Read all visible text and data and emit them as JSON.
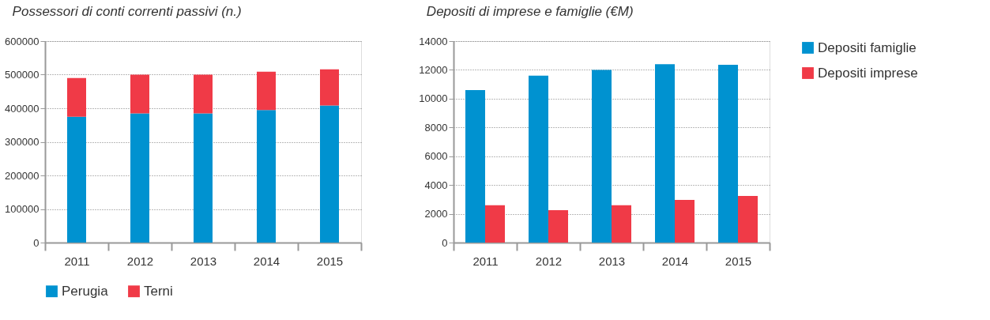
{
  "chart_data": [
    {
      "type": "bar",
      "title": "Possessori di conti correnti passivi (n.)",
      "stacked": true,
      "categories": [
        "2011",
        "2012",
        "2013",
        "2014",
        "2015"
      ],
      "series": [
        {
          "name": "Perugia",
          "color": "#0092d0",
          "values": [
            375000,
            385000,
            385000,
            395000,
            408000
          ]
        },
        {
          "name": "Terni",
          "color": "#f03a47",
          "values": [
            115000,
            115000,
            115000,
            114000,
            108000
          ]
        }
      ],
      "ylim": [
        0,
        600000
      ],
      "yticks": [
        0,
        100000,
        200000,
        300000,
        400000,
        500000,
        600000
      ],
      "grid": "y",
      "legend": "bottom"
    },
    {
      "type": "bar",
      "title": "Depositi di imprese e famiglie (€M)",
      "categories": [
        "2011",
        "2012",
        "2013",
        "2014",
        "2015"
      ],
      "series": [
        {
          "name": "Depositi famiglie",
          "color": "#0092d0",
          "values": [
            10600,
            11600,
            12000,
            12400,
            12350
          ]
        },
        {
          "name": "Depositi imprese",
          "color": "#f03a47",
          "values": [
            2600,
            2250,
            2600,
            2960,
            3240
          ]
        }
      ],
      "ylim": [
        0,
        14000
      ],
      "yticks": [
        0,
        2000,
        4000,
        6000,
        8000,
        10000,
        12000,
        14000
      ],
      "grid": "y",
      "legend": "top right"
    }
  ]
}
